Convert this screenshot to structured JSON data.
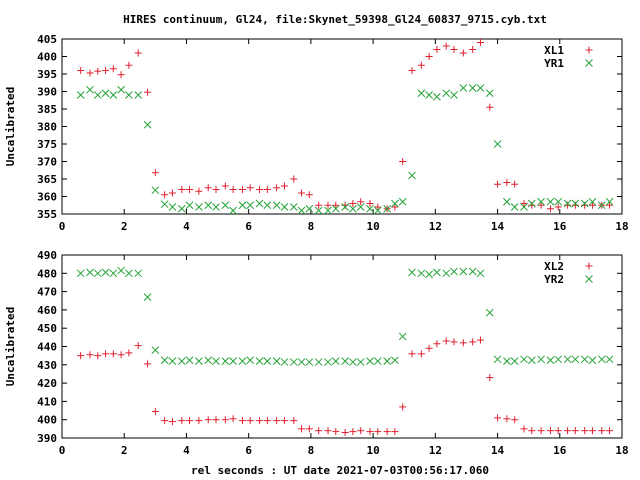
{
  "figure": {
    "title": "HIRES continuum, Gl24, file:Skynet_59398_Gl24_60837_9715.cyb.txt",
    "xlabel": "rel seconds : UT date 2021-07-03T00:56:17.060"
  },
  "colors": {
    "red": "#e0202f",
    "green": "#27a33a"
  },
  "chart_data": [
    {
      "type": "scatter",
      "ylabel": "Uncalibrated",
      "xlim": [
        0,
        18
      ],
      "ylim": [
        355,
        405
      ],
      "xticks": [
        0,
        2,
        4,
        6,
        8,
        10,
        12,
        14,
        16,
        18
      ],
      "yticks": [
        355,
        360,
        365,
        370,
        375,
        380,
        385,
        390,
        395,
        400,
        405
      ],
      "legend": "top-right",
      "series": [
        {
          "name": "XL1",
          "marker": "plus",
          "color": "#e0202f",
          "x": [
            0.6,
            0.9,
            1.15,
            1.4,
            1.65,
            1.9,
            2.15,
            2.45,
            2.75,
            3.0,
            3.3,
            3.55,
            3.85,
            4.1,
            4.4,
            4.7,
            4.95,
            5.25,
            5.5,
            5.8,
            6.05,
            6.35,
            6.6,
            6.9,
            7.15,
            7.45,
            7.7,
            7.95,
            8.25,
            8.55,
            8.8,
            9.1,
            9.35,
            9.6,
            9.9,
            10.15,
            10.45,
            10.7,
            10.95,
            11.25,
            11.55,
            11.8,
            12.05,
            12.35,
            12.6,
            12.9,
            13.2,
            13.45,
            13.75,
            14.0,
            14.3,
            14.55,
            14.85,
            15.1,
            15.4,
            15.7,
            15.95,
            16.25,
            16.5,
            16.8,
            17.05,
            17.35,
            17.6
          ],
          "values": [
            396,
            395.3,
            395.8,
            396,
            396.5,
            394.8,
            397.5,
            401,
            389.8,
            366.8,
            360.5,
            361,
            362,
            362,
            361.5,
            362.5,
            362,
            363,
            362,
            362,
            362.5,
            362,
            362,
            362.5,
            363,
            365,
            361,
            360.5,
            357.5,
            357.5,
            357.5,
            357.5,
            358,
            358.5,
            358,
            357,
            356.5,
            357,
            370,
            396,
            397.5,
            400,
            402,
            403,
            402,
            401,
            402,
            404,
            385.5,
            363.5,
            364,
            363.5,
            358,
            357.5,
            357.5,
            356.5,
            357,
            357.5,
            357.5,
            357.5,
            357.5,
            357.5,
            357.5
          ]
        },
        {
          "name": "YR1",
          "marker": "cross",
          "color": "#27a33a",
          "x": [
            0.6,
            0.9,
            1.15,
            1.4,
            1.65,
            1.9,
            2.15,
            2.45,
            2.75,
            3.0,
            3.3,
            3.55,
            3.85,
            4.1,
            4.4,
            4.7,
            4.95,
            5.25,
            5.5,
            5.8,
            6.05,
            6.35,
            6.6,
            6.9,
            7.15,
            7.45,
            7.7,
            7.95,
            8.25,
            8.55,
            8.8,
            9.1,
            9.35,
            9.6,
            9.9,
            10.15,
            10.45,
            10.7,
            10.95,
            11.25,
            11.55,
            11.8,
            12.05,
            12.35,
            12.6,
            12.9,
            13.2,
            13.45,
            13.75,
            14.0,
            14.3,
            14.55,
            14.85,
            15.1,
            15.4,
            15.7,
            15.95,
            16.25,
            16.5,
            16.8,
            17.05,
            17.35,
            17.6
          ],
          "values": [
            389,
            390.5,
            389,
            389.5,
            389,
            390.5,
            389,
            389,
            380.5,
            361.8,
            357.8,
            357,
            356.5,
            357.5,
            357,
            357.5,
            357,
            357.5,
            356,
            357.5,
            357.5,
            358,
            357.5,
            357.5,
            357,
            357,
            356,
            356.5,
            356,
            356,
            356.5,
            357,
            356.5,
            357,
            356.5,
            356,
            356.5,
            358,
            358.5,
            366,
            389.5,
            389,
            388.5,
            389.5,
            389,
            391,
            391,
            391,
            389.5,
            375,
            358.5,
            357,
            357,
            358,
            358.5,
            358.5,
            358.5,
            358,
            358,
            358,
            358.5,
            357.5,
            358.5
          ]
        }
      ]
    },
    {
      "type": "scatter",
      "ylabel": "Uncalibrated",
      "xlim": [
        0,
        18
      ],
      "ylim": [
        390,
        490
      ],
      "xticks": [
        0,
        2,
        4,
        6,
        8,
        10,
        12,
        14,
        16,
        18
      ],
      "yticks": [
        390,
        400,
        410,
        420,
        430,
        440,
        450,
        460,
        470,
        480,
        490
      ],
      "legend": "top-right",
      "series": [
        {
          "name": "XL2",
          "marker": "plus",
          "color": "#e0202f",
          "x": [
            0.6,
            0.9,
            1.15,
            1.4,
            1.65,
            1.9,
            2.15,
            2.45,
            2.75,
            3.0,
            3.3,
            3.55,
            3.85,
            4.1,
            4.4,
            4.7,
            4.95,
            5.25,
            5.5,
            5.8,
            6.05,
            6.35,
            6.6,
            6.9,
            7.15,
            7.45,
            7.7,
            7.95,
            8.25,
            8.55,
            8.8,
            9.1,
            9.35,
            9.6,
            9.9,
            10.15,
            10.45,
            10.7,
            10.95,
            11.25,
            11.55,
            11.8,
            12.05,
            12.35,
            12.6,
            12.9,
            13.2,
            13.45,
            13.75,
            14.0,
            14.3,
            14.55,
            14.85,
            15.1,
            15.4,
            15.7,
            15.95,
            16.25,
            16.5,
            16.8,
            17.05,
            17.35,
            17.6
          ],
          "values": [
            435,
            435.5,
            435,
            436,
            436,
            435.5,
            436.5,
            440.5,
            430.5,
            404.5,
            399.5,
            399,
            399.5,
            399.5,
            399.5,
            400,
            400,
            400,
            400.5,
            399.5,
            399.5,
            399.5,
            399.5,
            399.5,
            399.5,
            399.5,
            395,
            395,
            394,
            394,
            393.5,
            393,
            393.5,
            394,
            393.5,
            393.5,
            393.5,
            393.5,
            407,
            436,
            436,
            439,
            441.5,
            443,
            442.5,
            442,
            442.5,
            443.5,
            423,
            401,
            400.5,
            400,
            395,
            394,
            394,
            394,
            394,
            394,
            394,
            394,
            394,
            394,
            394
          ]
        },
        {
          "name": "YR2",
          "marker": "cross",
          "color": "#27a33a",
          "x": [
            0.6,
            0.9,
            1.15,
            1.4,
            1.65,
            1.9,
            2.15,
            2.45,
            2.75,
            3.0,
            3.3,
            3.55,
            3.85,
            4.1,
            4.4,
            4.7,
            4.95,
            5.25,
            5.5,
            5.8,
            6.05,
            6.35,
            6.6,
            6.9,
            7.15,
            7.45,
            7.7,
            7.95,
            8.25,
            8.55,
            8.8,
            9.1,
            9.35,
            9.6,
            9.9,
            10.15,
            10.45,
            10.7,
            10.95,
            11.25,
            11.55,
            11.8,
            12.05,
            12.35,
            12.6,
            12.9,
            13.2,
            13.45,
            13.75,
            14.0,
            14.3,
            14.55,
            14.85,
            15.1,
            15.4,
            15.7,
            15.95,
            16.25,
            16.5,
            16.8,
            17.05,
            17.35,
            17.6
          ],
          "values": [
            480,
            480.5,
            480,
            480.5,
            480,
            481.5,
            480,
            480,
            467,
            438,
            432.5,
            432,
            432,
            432.5,
            432,
            432.5,
            432,
            432,
            432,
            432,
            432.5,
            432,
            432,
            432,
            431.5,
            431.5,
            431.5,
            431.5,
            431.5,
            431.5,
            432,
            432,
            431.5,
            431.5,
            432,
            432,
            432,
            432.5,
            445.5,
            480.5,
            480,
            479.5,
            480.5,
            480,
            481,
            481,
            481,
            480,
            458.5,
            433,
            432,
            432,
            433,
            432.5,
            433,
            432.5,
            433,
            433,
            433,
            433,
            432.5,
            433,
            433
          ]
        }
      ]
    }
  ]
}
